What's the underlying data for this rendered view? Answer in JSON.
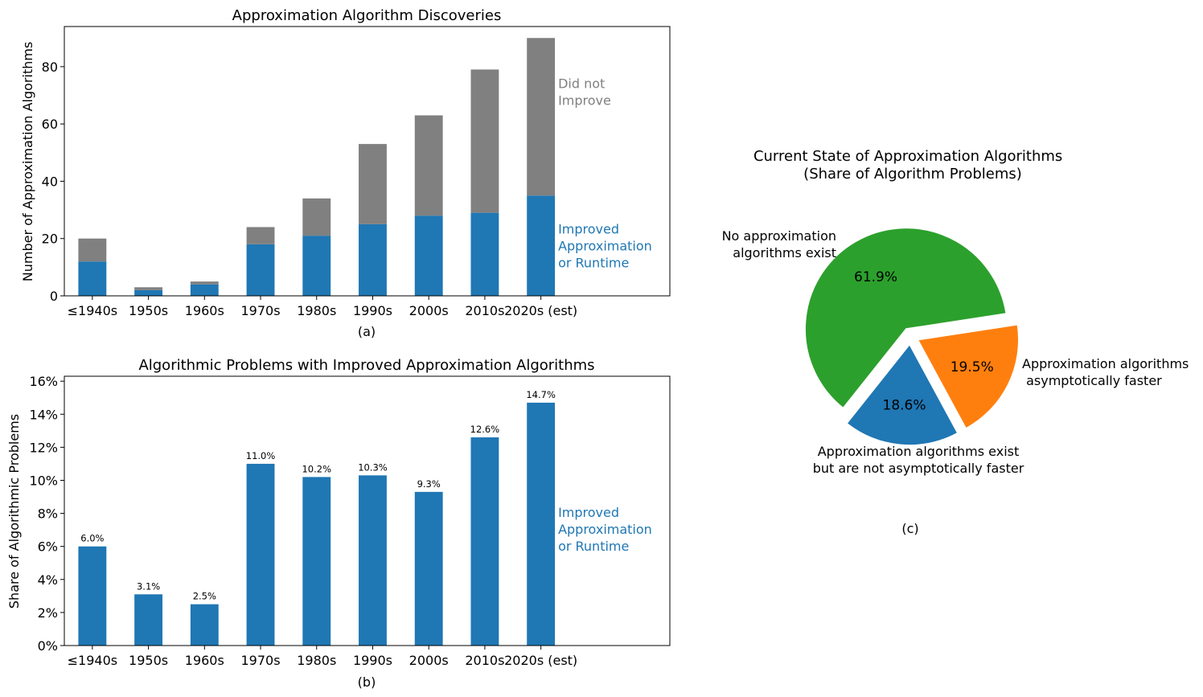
{
  "colors": {
    "improved": "#1f77b4",
    "not_improved": "#808080",
    "pie_no_alg": "#2ca02c",
    "pie_faster": "#ff7f0e",
    "pie_not_faster": "#1f77b4",
    "axis": "#000000"
  },
  "chart_data": [
    {
      "id": "a",
      "type": "bar",
      "stacked": true,
      "title": "Approximation Algorithm Discoveries",
      "ylabel": "Number of Approximation Algorithms",
      "panel_label": "(a)",
      "categories": [
        "≤1940s",
        "1950s",
        "1960s",
        "1970s",
        "1980s",
        "1990s",
        "2000s",
        "2010s",
        "2020s (est)"
      ],
      "series": [
        {
          "name": "Improved Approximation or Runtime",
          "values": [
            12,
            2,
            4,
            18,
            21,
            25,
            28,
            29,
            35
          ]
        },
        {
          "name": "Did not Improve",
          "values": [
            8,
            1,
            1,
            6,
            13,
            28,
            35,
            50,
            55
          ]
        }
      ],
      "annotations": [
        {
          "lines": [
            "Did not",
            "Improve"
          ],
          "series": "Did not Improve"
        },
        {
          "lines": [
            "Improved",
            "Approximation",
            "or Runtime"
          ],
          "series": "Improved Approximation or Runtime"
        }
      ],
      "ylim": [
        0,
        94
      ],
      "yticks": [
        0,
        20,
        40,
        60,
        80
      ],
      "ytick_labels": [
        "0",
        "20",
        "40",
        "60",
        "80"
      ],
      "grid": false
    },
    {
      "id": "b",
      "type": "bar",
      "title": "Algorithmic Problems with Improved Approximation Algorithms",
      "ylabel": "Share of Algorithmic Problems",
      "panel_label": "(b)",
      "categories": [
        "≤1940s",
        "1950s",
        "1960s",
        "1970s",
        "1980s",
        "1990s",
        "2000s",
        "2010s",
        "2020s (est)"
      ],
      "values": [
        6.0,
        3.1,
        2.5,
        11.0,
        10.2,
        10.3,
        9.3,
        12.6,
        14.7
      ],
      "data_labels": [
        "6.0%",
        "3.1%",
        "2.5%",
        "11.0%",
        "10.2%",
        "10.3%",
        "9.3%",
        "12.6%",
        "14.7%"
      ],
      "annotations": [
        {
          "lines": [
            "Improved",
            "Approximation",
            "or Runtime"
          ]
        }
      ],
      "ylim": [
        0,
        16.3
      ],
      "yticks": [
        0,
        2,
        4,
        6,
        8,
        10,
        12,
        14,
        16
      ],
      "ytick_labels": [
        "0%",
        "2%",
        "4%",
        "6%",
        "8%",
        "10%",
        "12%",
        "14%",
        "16%"
      ],
      "grid": false
    },
    {
      "id": "c",
      "type": "pie",
      "title_lines": [
        "Current State of Approximation Algorithms",
        "(Share of Algorithm Problems)"
      ],
      "panel_label": "(c)",
      "slices": [
        {
          "label_lines": [
            "Approximation algorithms exist",
            "but are not asymptotically faster"
          ],
          "value": 18.6,
          "pct_label": "18.6%",
          "color_key": "pie_not_faster"
        },
        {
          "label_lines": [
            "Approximation algorithms",
            " asymptotically faster"
          ],
          "value": 19.5,
          "pct_label": "19.5%",
          "color_key": "pie_faster"
        },
        {
          "label_lines": [
            "No approximation",
            "algorithms exist"
          ],
          "value": 61.9,
          "pct_label": "61.9%",
          "color_key": "pie_no_alg"
        }
      ]
    }
  ]
}
